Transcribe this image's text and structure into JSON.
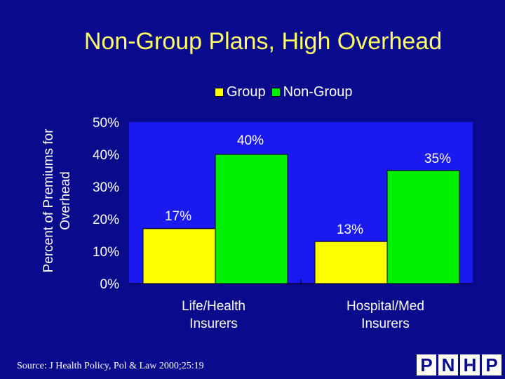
{
  "chart_data": {
    "type": "bar",
    "title": "Non-Group Plans, High Overhead",
    "ylabel": "Percent of Premiums for Overhead",
    "xlabel": "",
    "categories": [
      "Life/Health Insurers",
      "Hospital/Med Insurers"
    ],
    "category_lines": [
      [
        "Life/Health",
        "Insurers"
      ],
      [
        "Hospital/Med",
        "Insurers"
      ]
    ],
    "series": [
      {
        "name": "Group",
        "values": [
          17,
          13
        ],
        "labels": [
          "17%",
          "13%"
        ],
        "color": "#ffff00"
      },
      {
        "name": "Non-Group",
        "values": [
          40,
          35
        ],
        "labels": [
          "40%",
          "35%"
        ],
        "color": "#00ee00"
      }
    ],
    "ylim": [
      0,
      50
    ],
    "yticks": [
      "0%",
      "10%",
      "20%",
      "30%",
      "40%",
      "50%"
    ],
    "legend_position": "top",
    "grid": false
  },
  "colors": {
    "background": "#0a0a8c",
    "plot_area": "#1a1af0",
    "title": "#ffff66",
    "text": "#ffffff"
  },
  "footer": {
    "source": "Source: J Health Policy, Pol & Law 2000;25:19",
    "logo_letters": [
      "P",
      "N",
      "H",
      "P"
    ]
  }
}
